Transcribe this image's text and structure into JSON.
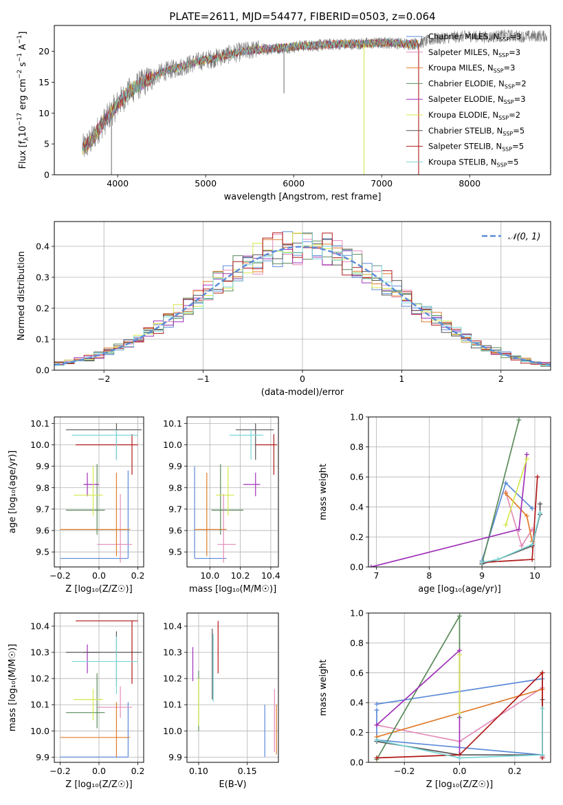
{
  "figure_title": "PLATE=2611, MJD=54477, FIBERID=0503, z=0.064",
  "colors": {
    "chabrier_miles": "#5b8ad8",
    "salpeter_miles": "#e38ab8",
    "kroupa_miles": "#e07b2a",
    "chabrier_elodie": "#5a8a5a",
    "salpeter_elodie": "#a030b8",
    "kroupa_elodie": "#d4e84a",
    "chabrier_stelib": "#555555",
    "salpeter_stelib": "#b01818",
    "kroupa_stelib": "#7ad6d6",
    "normal": "#5b8ad8",
    "grid": "#b0b0b0"
  },
  "legend_entries": [
    {
      "label": "Chabrier MILES, N",
      "sub": "SSP",
      "tail": "=3",
      "color": "chabrier_miles"
    },
    {
      "label": "Salpeter MILES, N",
      "sub": "SSP",
      "tail": "=3",
      "color": "salpeter_miles"
    },
    {
      "label": "Kroupa MILES, N",
      "sub": "SSP",
      "tail": "=3",
      "color": "kroupa_miles"
    },
    {
      "label": "Chabrier ELODIE, N",
      "sub": "SSP",
      "tail": "=2",
      "color": "chabrier_elodie"
    },
    {
      "label": "Salpeter ELODIE, N",
      "sub": "SSP",
      "tail": "=3",
      "color": "salpeter_elodie"
    },
    {
      "label": "Kroupa ELODIE, N",
      "sub": "SSP",
      "tail": "=2",
      "color": "kroupa_elodie"
    },
    {
      "label": "Chabrier STELIB, N",
      "sub": "SSP",
      "tail": "=5",
      "color": "chabrier_stelib"
    },
    {
      "label": "Salpeter STELIB, N",
      "sub": "SSP",
      "tail": "=5",
      "color": "salpeter_stelib"
    },
    {
      "label": "Kroupa STELIB, N",
      "sub": "SSP",
      "tail": "=5",
      "color": "kroupa_stelib"
    }
  ],
  "chart_data": [
    {
      "id": "spectrum",
      "type": "line",
      "xlabel": "wavelength [Angstrom, rest frame]",
      "ylabel_main": "Flux [f",
      "ylabel_parts": [
        "λ",
        "10",
        "−17",
        " erg cm",
        "−2",
        " s",
        "−1",
        " A",
        "−1",
        "]"
      ],
      "xlim": [
        3280,
        8920
      ],
      "ylim": [
        0,
        24.2
      ],
      "xticks": [
        "4000",
        "5000",
        "6000",
        "7000",
        "8000"
      ],
      "yticks": [
        "0",
        "5",
        "10",
        "15",
        "20"
      ],
      "continuum": {
        "x": [
          3600,
          3700,
          3800,
          3900,
          4000,
          4100,
          4200,
          4300,
          4400,
          4500,
          4700,
          4900,
          5100,
          5300,
          5500,
          5700,
          5900,
          6100,
          6300,
          6500,
          6700,
          6900,
          7100,
          7300,
          7420
        ],
        "y": [
          4.2,
          5.5,
          7.8,
          9.5,
          11.5,
          13.0,
          14.2,
          15.0,
          15.8,
          16.6,
          17.4,
          18.3,
          18.9,
          19.6,
          20.2,
          20.4,
          20.6,
          20.9,
          21.0,
          21.2,
          21.2,
          21.3,
          21.4,
          21.2,
          21.3
        ]
      },
      "gray_extension": {
        "x": [
          7420,
          7600,
          7800,
          8000,
          8200,
          8400,
          8600,
          8800
        ],
        "y": [
          21.3,
          22.0,
          22.3,
          22.5,
          22.3,
          22.6,
          22.4,
          22.5
        ]
      },
      "spikes": [
        {
          "x": 6800,
          "y": 0
        },
        {
          "x": 7420,
          "y": 0
        },
        {
          "x": 3930,
          "y": 0
        },
        {
          "x": 5890,
          "y": 13.2
        }
      ]
    },
    {
      "id": "residual-histogram",
      "type": "bar",
      "xlabel": "(data-model)/error",
      "ylabel": "Normed distribution",
      "xlim": [
        -2.5,
        2.5
      ],
      "ylim": [
        0,
        0.48
      ],
      "xticks": [
        "−2",
        "−1",
        "0",
        "1",
        "2"
      ],
      "yticks": [
        "0.0",
        "0.1",
        "0.2",
        "0.3",
        "0.4"
      ],
      "bin_width": 0.1,
      "normal_label": "𝒩(0, 1)"
    },
    {
      "id": "age-vs-Z",
      "type": "scatter",
      "xlabel": "Z [log₁₀(Z/Z☉)]",
      "ylabel": "age  [log₁₀(age/yr)]",
      "xlim": [
        -0.23,
        0.23
      ],
      "ylim": [
        9.43,
        10.13
      ],
      "xticks": [
        "−0.2",
        "0.0",
        "0.2"
      ],
      "yticks": [
        "9.5",
        "9.6",
        "9.7",
        "9.8",
        "9.9",
        "10.0",
        "10.1"
      ],
      "errorbars": [
        {
          "s": "chabrier_miles",
          "x": 0.15,
          "xe": [
            -0.2,
            0.15
          ],
          "y": 9.47,
          "ye": [
            9.47,
            9.88
          ]
        },
        {
          "s": "salpeter_miles",
          "x": 0.11,
          "xe": [
            -0.01,
            0.17
          ],
          "y": 9.535,
          "ye": [
            9.45,
            9.77
          ]
        },
        {
          "s": "kroupa_miles",
          "x": 0.09,
          "xe": [
            -0.2,
            0.16
          ],
          "y": 9.605,
          "ye": [
            9.48,
            9.87
          ]
        },
        {
          "s": "chabrier_elodie",
          "x": -0.01,
          "xe": [
            -0.17,
            0.03
          ],
          "y": 9.695,
          "ye": [
            9.58,
            9.91
          ]
        },
        {
          "s": "salpeter_elodie",
          "x": -0.06,
          "xe": [
            -0.08,
            0.0
          ],
          "y": 9.815,
          "ye": [
            9.76,
            9.87
          ]
        },
        {
          "s": "kroupa_elodie",
          "x": -0.03,
          "xe": [
            -0.13,
            0.02
          ],
          "y": 9.765,
          "ye": [
            9.67,
            9.9
          ]
        },
        {
          "s": "chabrier_stelib",
          "x": 0.09,
          "xe": [
            -0.17,
            0.22
          ],
          "y": 10.07,
          "ye": [
            9.93,
            10.1
          ]
        },
        {
          "s": "salpeter_stelib",
          "x": 0.17,
          "xe": [
            -0.12,
            0.2
          ],
          "y": 10.0,
          "ye": [
            9.86,
            10.05
          ]
        },
        {
          "s": "kroupa_stelib",
          "x": 0.09,
          "xe": [
            -0.14,
            0.2
          ],
          "y": 10.045,
          "ye": [
            9.93,
            10.07
          ]
        }
      ]
    },
    {
      "id": "age-vs-mass",
      "type": "scatter",
      "xlabel": "mass [log₁₀(M/M☉)]",
      "ylabel": "",
      "xlim": [
        9.85,
        10.45
      ],
      "ylim": [
        9.43,
        10.13
      ],
      "xticks": [
        "10.0",
        "10.2",
        "10.4"
      ],
      "yticks": [
        "9.5",
        "9.6",
        "9.7",
        "9.8",
        "9.9",
        "10.0",
        "10.1"
      ],
      "errorbars": [
        {
          "s": "chabrier_miles",
          "x": 9.9,
          "xe": [
            9.9,
            10.11
          ],
          "y": 9.47,
          "ye": [
            9.47,
            9.9
          ]
        },
        {
          "s": "salpeter_miles",
          "x": 10.09,
          "xe": [
            10.05,
            10.17
          ],
          "y": 9.535,
          "ye": [
            9.45,
            9.77
          ]
        },
        {
          "s": "kroupa_miles",
          "x": 9.98,
          "xe": [
            9.9,
            10.11
          ],
          "y": 9.605,
          "ye": [
            9.48,
            9.87
          ]
        },
        {
          "s": "chabrier_elodie",
          "x": 10.07,
          "xe": [
            10.01,
            10.22
          ],
          "y": 9.695,
          "ye": [
            9.58,
            9.91
          ]
        },
        {
          "s": "salpeter_elodie",
          "x": 10.3,
          "xe": [
            10.22,
            10.33
          ],
          "y": 9.815,
          "ye": [
            9.76,
            9.87
          ]
        },
        {
          "s": "kroupa_elodie",
          "x": 10.12,
          "xe": [
            10.04,
            10.16
          ],
          "y": 9.765,
          "ye": [
            9.67,
            9.9
          ]
        },
        {
          "s": "chabrier_stelib",
          "x": 10.3,
          "xe": [
            10.17,
            10.42
          ],
          "y": 10.07,
          "ye": [
            9.93,
            10.1
          ]
        },
        {
          "s": "salpeter_stelib",
          "x": 10.42,
          "xe": [
            10.3,
            10.44
          ],
          "y": 10.0,
          "ye": [
            9.86,
            10.05
          ]
        },
        {
          "s": "kroupa_stelib",
          "x": 10.27,
          "xe": [
            10.13,
            10.35
          ],
          "y": 10.045,
          "ye": [
            9.93,
            10.07
          ]
        }
      ]
    },
    {
      "id": "mass-weight-vs-age",
      "type": "line",
      "xlabel": "age  [log₁₀(age/yr)]",
      "ylabel": "mass weight",
      "xlim": [
        6.85,
        10.3
      ],
      "ylim": [
        0,
        1.0
      ],
      "xticks": [
        "7",
        "8",
        "9",
        "10"
      ],
      "yticks": [
        "0.0",
        "0.2",
        "0.4",
        "0.6",
        "0.8",
        "1.0"
      ],
      "series": [
        {
          "s": "chabrier_miles",
          "x": [
            9.0,
            9.45,
            9.95
          ],
          "y": [
            0.04,
            0.56,
            0.39
          ]
        },
        {
          "s": "salpeter_miles",
          "x": [
            9.45,
            9.75,
            9.95
          ],
          "y": [
            0.5,
            0.14,
            0.25
          ]
        },
        {
          "s": "kroupa_miles",
          "x": [
            9.45,
            9.85,
            9.95
          ],
          "y": [
            0.49,
            0.34,
            0.17
          ]
        },
        {
          "s": "chabrier_elodie",
          "x": [
            9.0,
            9.7
          ],
          "y": [
            0.02,
            0.98
          ]
        },
        {
          "s": "salpeter_elodie",
          "x": [
            6.9,
            9.7,
            9.85
          ],
          "y": [
            0.0,
            0.25,
            0.75
          ]
        },
        {
          "s": "kroupa_elodie",
          "x": [
            9.45,
            9.85
          ],
          "y": [
            0.28,
            0.72
          ]
        },
        {
          "s": "chabrier_stelib",
          "x": [
            9.0,
            9.3,
            9.95,
            10.1,
            10.1
          ],
          "y": [
            0.02,
            0.05,
            0.14,
            0.35,
            0.42
          ]
        },
        {
          "s": "salpeter_stelib",
          "x": [
            9.0,
            9.95,
            10.05
          ],
          "y": [
            0.03,
            0.05,
            0.6
          ]
        },
        {
          "s": "kroupa_stelib",
          "x": [
            9.0,
            9.3,
            9.95,
            10.1
          ],
          "y": [
            0.03,
            0.05,
            0.15,
            0.36
          ]
        }
      ]
    },
    {
      "id": "mass-vs-Z",
      "type": "scatter",
      "xlabel": "Z [log₁₀(Z/Z☉)]",
      "ylabel": "mass [log₁₀(M/M☉)]",
      "xlim": [
        -0.23,
        0.23
      ],
      "ylim": [
        9.88,
        10.45
      ],
      "xticks": [
        "−0.2",
        "0.0",
        "0.2"
      ],
      "yticks": [
        "9.9",
        "10.0",
        "10.1",
        "10.2",
        "10.3",
        "10.4"
      ],
      "errorbars": [
        {
          "s": "chabrier_miles",
          "x": 0.15,
          "xe": [
            -0.2,
            0.15
          ],
          "y": 9.9,
          "ye": [
            9.9,
            10.11
          ]
        },
        {
          "s": "salpeter_miles",
          "x": 0.11,
          "xe": [
            -0.01,
            0.17
          ],
          "y": 10.09,
          "ye": [
            10.05,
            10.17
          ]
        },
        {
          "s": "kroupa_miles",
          "x": 0.09,
          "xe": [
            -0.2,
            0.16
          ],
          "y": 9.975,
          "ye": [
            9.9,
            10.11
          ]
        },
        {
          "s": "chabrier_elodie",
          "x": -0.01,
          "xe": [
            -0.17,
            0.03
          ],
          "y": 10.07,
          "ye": [
            10.01,
            10.22
          ]
        },
        {
          "s": "salpeter_elodie",
          "x": -0.06,
          "xe": [
            -0.08,
            0.0
          ],
          "y": 10.3,
          "ye": [
            10.22,
            10.33
          ]
        },
        {
          "s": "kroupa_elodie",
          "x": -0.03,
          "xe": [
            -0.13,
            0.02
          ],
          "y": 10.12,
          "ye": [
            10.04,
            10.16
          ]
        },
        {
          "s": "chabrier_stelib",
          "x": 0.09,
          "xe": [
            -0.17,
            0.22
          ],
          "y": 10.3,
          "ye": [
            10.17,
            10.38
          ]
        },
        {
          "s": "salpeter_stelib",
          "x": 0.17,
          "xe": [
            -0.12,
            0.2
          ],
          "y": 10.42,
          "ye": [
            10.18,
            10.42
          ]
        },
        {
          "s": "kroupa_stelib",
          "x": 0.09,
          "xe": [
            -0.14,
            0.2
          ],
          "y": 10.265,
          "ye": [
            10.14,
            10.36
          ]
        }
      ]
    },
    {
      "id": "mass-vs-ebv",
      "type": "scatter",
      "xlabel": "E(B-V)",
      "ylabel": "",
      "xlim": [
        0.088,
        0.182
      ],
      "ylim": [
        9.88,
        10.45
      ],
      "xticks": [
        "0.10",
        "0.15"
      ],
      "yticks": [
        "9.9",
        "10.0",
        "10.1",
        "10.2",
        "10.3",
        "10.4"
      ],
      "errorbars": [
        {
          "s": "chabrier_miles",
          "x": 0.168,
          "ye": [
            9.9,
            10.1
          ]
        },
        {
          "s": "salpeter_miles",
          "x": 0.178,
          "ye": [
            9.92,
            10.16
          ]
        },
        {
          "s": "kroupa_miles",
          "x": 0.18,
          "ye": [
            9.91,
            10.1
          ]
        },
        {
          "s": "chabrier_elodie",
          "x": 0.1,
          "ye": [
            10.0,
            10.23
          ]
        },
        {
          "s": "salpeter_elodie",
          "x": 0.094,
          "ye": [
            10.19,
            10.32
          ]
        },
        {
          "s": "kroupa_elodie",
          "x": 0.1,
          "ye": [
            10.02,
            10.2
          ]
        },
        {
          "s": "chabrier_stelib",
          "x": 0.114,
          "ye": [
            10.12,
            10.39
          ]
        },
        {
          "s": "salpeter_stelib",
          "x": 0.12,
          "ye": [
            10.22,
            10.42
          ]
        },
        {
          "s": "kroupa_stelib",
          "x": 0.115,
          "ye": [
            10.11,
            10.37
          ]
        }
      ]
    },
    {
      "id": "mass-weight-vs-Z",
      "type": "line",
      "xlabel": "Z [log₁₀(Z/Z☉)]",
      "ylabel": "mass weight",
      "xlim": [
        -0.33,
        0.33
      ],
      "ylim": [
        0,
        1.0
      ],
      "xticks": [
        "−0.2",
        "0.0",
        "0.2"
      ],
      "yticks": [
        "0.0",
        "0.2",
        "0.4",
        "0.6",
        "0.8",
        "1.0"
      ],
      "series": [
        {
          "s": "chabrier_miles",
          "x": [
            -0.3,
            0.3,
            0.3,
            -0.3,
            -0.3
          ],
          "y": [
            0.39,
            0.56,
            0.05,
            0.15,
            0.35
          ]
        },
        {
          "s": "salpeter_miles",
          "x": [
            -0.3,
            0.0,
            0.3,
            0.3
          ],
          "y": [
            0.25,
            0.14,
            0.5,
            0.04
          ]
        },
        {
          "s": "kroupa_miles",
          "x": [
            -0.3,
            0.3,
            0.3
          ],
          "y": [
            0.17,
            0.49,
            0.05
          ]
        },
        {
          "s": "chabrier_elodie",
          "x": [
            -0.3,
            0.0,
            0.0
          ],
          "y": [
            0.02,
            0.98,
            0.3
          ]
        },
        {
          "s": "salpeter_elodie",
          "x": [
            -0.3,
            0.0,
            0.0
          ],
          "y": [
            0.25,
            0.75,
            0.03
          ]
        },
        {
          "s": "kroupa_elodie",
          "x": [
            0.0,
            0.0
          ],
          "y": [
            0.33,
            0.72
          ]
        },
        {
          "s": "chabrier_stelib",
          "x": [
            -0.3,
            0.0,
            0.3,
            0.3
          ],
          "y": [
            0.14,
            0.05,
            0.05,
            0.42
          ]
        },
        {
          "s": "salpeter_stelib",
          "x": [
            -0.3,
            0.0,
            0.3,
            0.3
          ],
          "y": [
            0.03,
            0.05,
            0.6,
            0.03
          ]
        },
        {
          "s": "kroupa_stelib",
          "x": [
            -0.3,
            0.0,
            0.3,
            0.3
          ],
          "y": [
            0.15,
            0.03,
            0.05,
            0.36
          ]
        }
      ]
    }
  ]
}
